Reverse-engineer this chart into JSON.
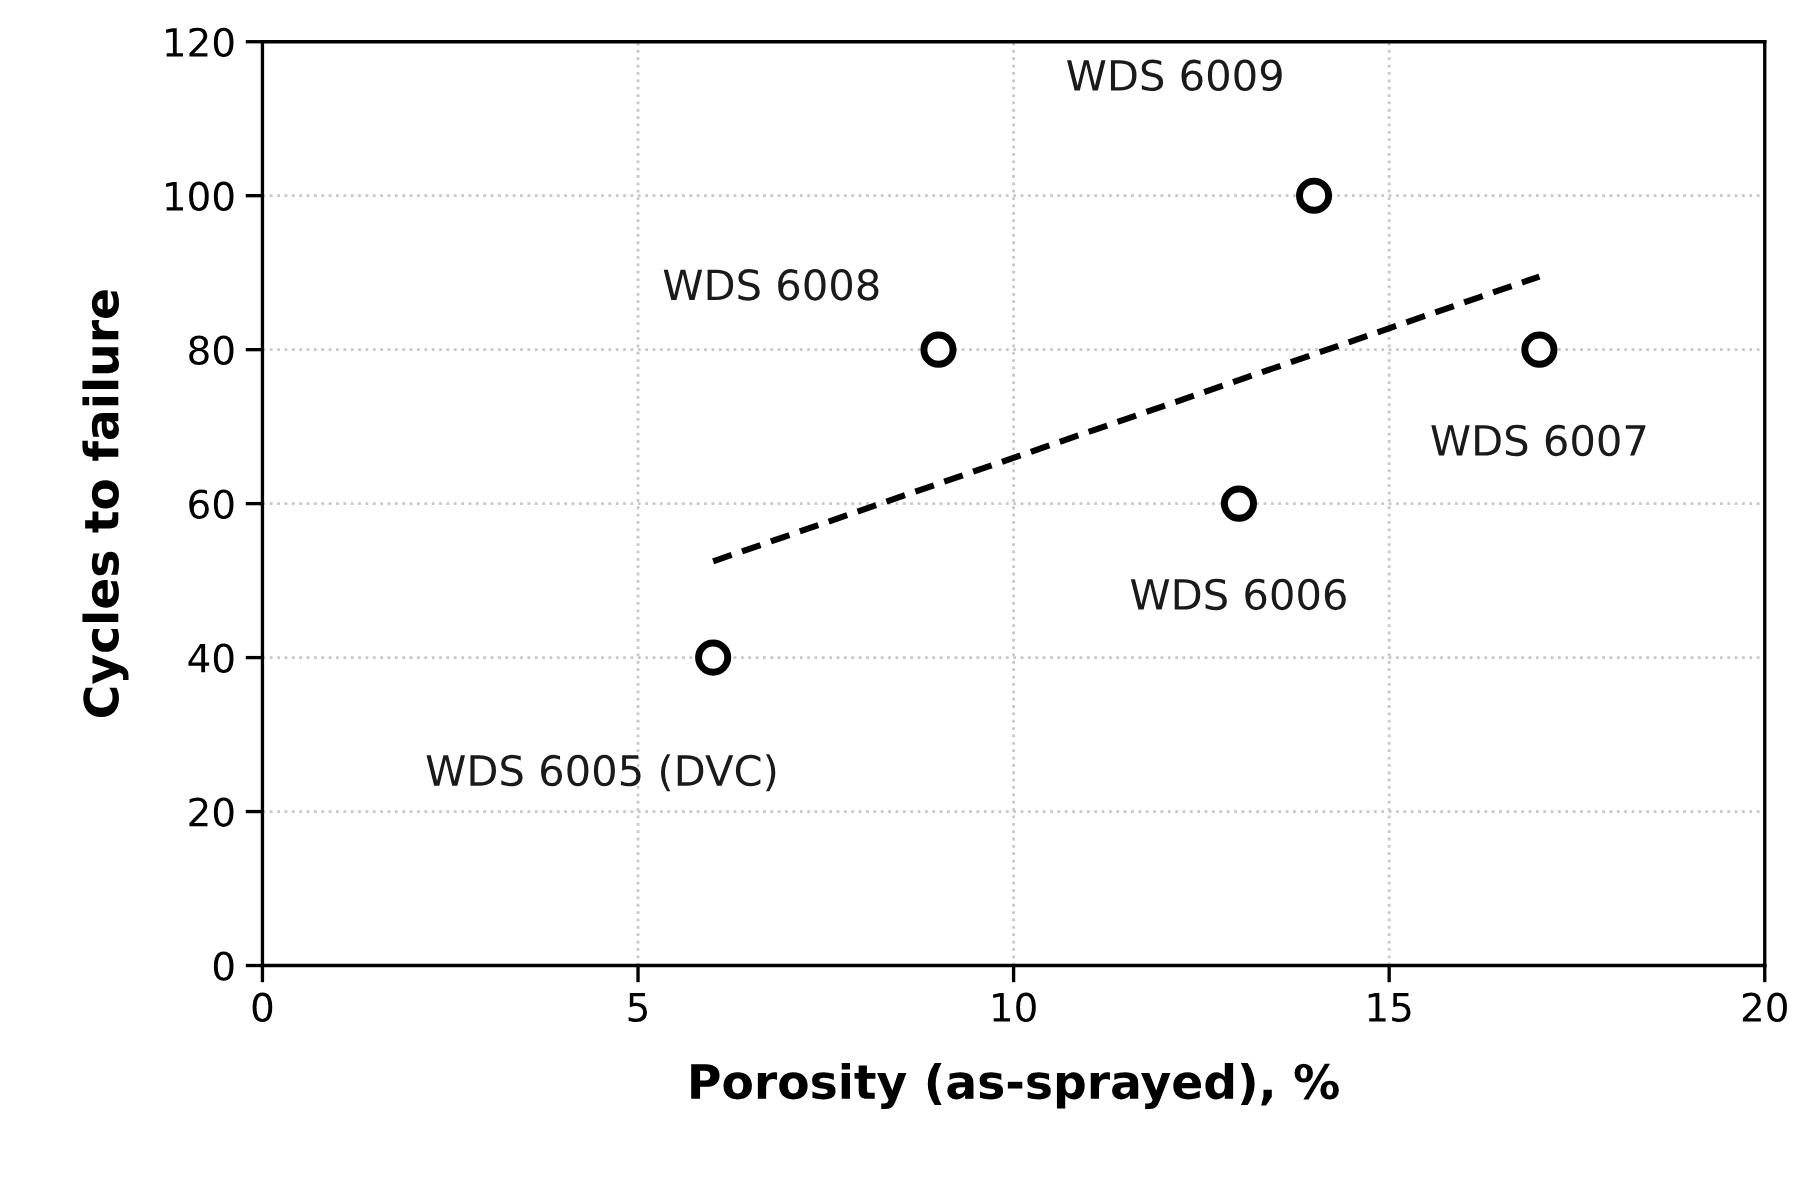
{
  "chart_data": {
    "type": "scatter",
    "xlabel": "Porosity (as-sprayed), %",
    "ylabel": "Cycles to failure",
    "xlim": [
      0,
      20
    ],
    "xticks": [
      0,
      5,
      10,
      15,
      20
    ],
    "ylim": [
      0,
      120
    ],
    "yticks": [
      0,
      20,
      40,
      60,
      80,
      100,
      120
    ],
    "grid": true,
    "series": [
      {
        "marker": "circle",
        "color": "#000000",
        "x": [
          6,
          9,
          13,
          14,
          17
        ],
        "values": [
          40,
          80,
          60,
          100,
          80
        ]
      },
      {
        "type": "line",
        "color": "#000000",
        "line_style": "dashed",
        "marker": "none",
        "x": [
          6,
          17
        ],
        "values": [
          52.5,
          89.5
        ]
      }
    ],
    "annotations": [
      {
        "text": "WDS 6005 (DVC)",
        "x": 6,
        "y": 40
      },
      {
        "text": "WDS 6008",
        "x": 9,
        "y": 80
      },
      {
        "text": "WDS 6006",
        "x": 13,
        "y": 60
      },
      {
        "text": "WDS 6009",
        "x": 14,
        "y": 100
      },
      {
        "text": "WDS 6007",
        "x": 17,
        "y": 80
      }
    ]
  }
}
